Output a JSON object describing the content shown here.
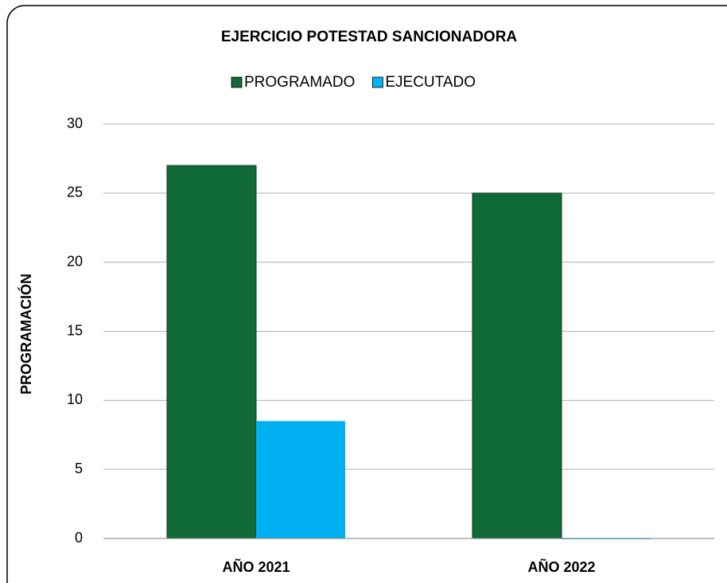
{
  "chart_data": {
    "type": "bar",
    "title": "EJERCICIO POTESTAD SANCIONADORA",
    "y_label": "PROGRAMACIÓN",
    "categories": [
      "AÑO 2021",
      "AÑO 2022"
    ],
    "series": [
      {
        "name": "PROGRAMADO",
        "color": "#116b37",
        "values": [
          27,
          25
        ]
      },
      {
        "name": "EJECUTADO",
        "color": "#00b0f0",
        "values": [
          8.5,
          0
        ]
      }
    ],
    "ylim": [
      0,
      30
    ],
    "yticks": [
      0,
      5,
      10,
      15,
      20,
      25,
      30
    ],
    "grid": true,
    "legend": "top"
  }
}
